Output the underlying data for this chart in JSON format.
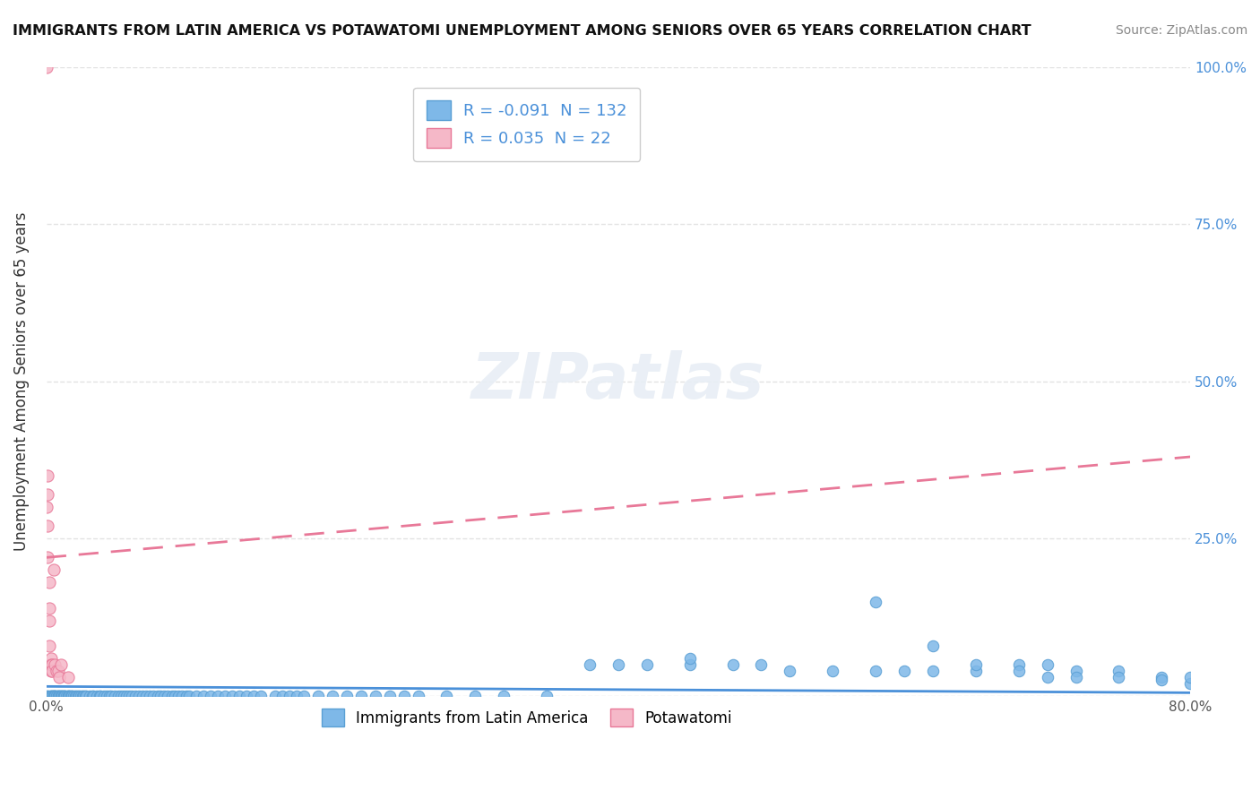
{
  "title": "IMMIGRANTS FROM LATIN AMERICA VS POTAWATOMI UNEMPLOYMENT AMONG SENIORS OVER 65 YEARS CORRELATION CHART",
  "source": "Source: ZipAtlas.com",
  "xlabel": "",
  "ylabel": "Unemployment Among Seniors over 65 years",
  "xlim": [
    0.0,
    0.8
  ],
  "ylim": [
    0.0,
    1.0
  ],
  "xticks": [
    0.0,
    0.1,
    0.2,
    0.3,
    0.4,
    0.5,
    0.6,
    0.7,
    0.8
  ],
  "xticklabels": [
    "0.0%",
    "",
    "",
    "",
    "",
    "",
    "",
    "",
    "80.0%"
  ],
  "yticks": [
    0.0,
    0.25,
    0.5,
    0.75,
    1.0
  ],
  "yticklabels_left": [
    "",
    "25.0%",
    "50.0%",
    "75.0%",
    "100.0%"
  ],
  "yticklabels_right": [
    "",
    "25.0%",
    "50.0%",
    "75.0%",
    "100.0%"
  ],
  "blue_color": "#7eb8e8",
  "blue_edge": "#5a9fd4",
  "pink_color": "#f5b8c8",
  "pink_edge": "#e87898",
  "blue_R": -0.091,
  "blue_N": 132,
  "pink_R": 0.035,
  "pink_N": 22,
  "trend_blue_color": "#4a90d9",
  "trend_pink_color": "#e87898",
  "watermark": "ZIPatlas",
  "background_color": "#ffffff",
  "grid_color": "#dddddd",
  "legend_label_blue": "Immigrants from Latin America",
  "legend_label_pink": "Potawatomi",
  "blue_scatter_x": [
    0.0,
    0.001,
    0.002,
    0.003,
    0.003,
    0.004,
    0.004,
    0.005,
    0.005,
    0.005,
    0.006,
    0.006,
    0.007,
    0.007,
    0.008,
    0.008,
    0.009,
    0.009,
    0.01,
    0.01,
    0.011,
    0.011,
    0.012,
    0.012,
    0.013,
    0.013,
    0.014,
    0.015,
    0.015,
    0.016,
    0.016,
    0.017,
    0.018,
    0.018,
    0.019,
    0.02,
    0.021,
    0.022,
    0.023,
    0.024,
    0.025,
    0.026,
    0.027,
    0.028,
    0.03,
    0.032,
    0.033,
    0.035,
    0.037,
    0.038,
    0.04,
    0.042,
    0.044,
    0.045,
    0.048,
    0.05,
    0.052,
    0.054,
    0.056,
    0.058,
    0.06,
    0.062,
    0.065,
    0.067,
    0.07,
    0.072,
    0.075,
    0.078,
    0.08,
    0.082,
    0.085,
    0.088,
    0.09,
    0.092,
    0.095,
    0.098,
    0.1,
    0.105,
    0.11,
    0.115,
    0.12,
    0.125,
    0.13,
    0.135,
    0.14,
    0.145,
    0.15,
    0.16,
    0.165,
    0.17,
    0.175,
    0.18,
    0.19,
    0.2,
    0.21,
    0.22,
    0.23,
    0.24,
    0.25,
    0.26,
    0.28,
    0.3,
    0.32,
    0.35,
    0.38,
    0.4,
    0.42,
    0.45,
    0.48,
    0.5,
    0.52,
    0.55,
    0.58,
    0.6,
    0.62,
    0.65,
    0.68,
    0.7,
    0.72,
    0.75,
    0.78,
    0.8,
    0.58,
    0.62,
    0.65,
    0.68,
    0.7,
    0.72,
    0.75,
    0.78,
    0.8,
    0.45
  ],
  "blue_scatter_y": [
    0.0,
    0.0,
    0.0,
    0.0,
    0.0,
    0.0,
    0.0,
    0.0,
    0.0,
    0.0,
    0.0,
    0.0,
    0.0,
    0.0,
    0.0,
    0.0,
    0.0,
    0.0,
    0.0,
    0.0,
    0.0,
    0.0,
    0.0,
    0.0,
    0.0,
    0.0,
    0.0,
    0.0,
    0.0,
    0.0,
    0.0,
    0.0,
    0.0,
    0.0,
    0.0,
    0.0,
    0.0,
    0.0,
    0.0,
    0.0,
    0.0,
    0.0,
    0.0,
    0.0,
    0.0,
    0.0,
    0.0,
    0.0,
    0.0,
    0.0,
    0.0,
    0.0,
    0.0,
    0.0,
    0.0,
    0.0,
    0.0,
    0.0,
    0.0,
    0.0,
    0.0,
    0.0,
    0.0,
    0.0,
    0.0,
    0.0,
    0.0,
    0.0,
    0.0,
    0.0,
    0.0,
    0.0,
    0.0,
    0.0,
    0.0,
    0.0,
    0.0,
    0.0,
    0.0,
    0.0,
    0.0,
    0.0,
    0.0,
    0.0,
    0.0,
    0.0,
    0.0,
    0.0,
    0.0,
    0.0,
    0.0,
    0.0,
    0.0,
    0.0,
    0.0,
    0.0,
    0.0,
    0.0,
    0.0,
    0.0,
    0.0,
    0.0,
    0.0,
    0.0,
    0.05,
    0.05,
    0.05,
    0.05,
    0.05,
    0.05,
    0.04,
    0.04,
    0.04,
    0.04,
    0.04,
    0.04,
    0.05,
    0.05,
    0.04,
    0.04,
    0.03,
    0.02,
    0.15,
    0.08,
    0.05,
    0.04,
    0.03,
    0.03,
    0.03,
    0.025,
    0.03,
    0.06
  ],
  "pink_scatter_x": [
    0.0,
    0.0,
    0.001,
    0.001,
    0.001,
    0.001,
    0.002,
    0.002,
    0.002,
    0.002,
    0.003,
    0.003,
    0.003,
    0.004,
    0.004,
    0.005,
    0.006,
    0.007,
    0.008,
    0.009,
    0.01,
    0.015
  ],
  "pink_scatter_y": [
    1.0,
    0.3,
    0.32,
    0.35,
    0.27,
    0.22,
    0.18,
    0.14,
    0.08,
    0.12,
    0.06,
    0.05,
    0.04,
    0.05,
    0.04,
    0.2,
    0.05,
    0.04,
    0.04,
    0.03,
    0.05,
    0.03
  ],
  "blue_trend_x": [
    0.0,
    0.8
  ],
  "blue_trend_y_start": 0.015,
  "blue_trend_y_end": 0.005,
  "pink_trend_x": [
    0.0,
    0.8
  ],
  "pink_trend_y_start": 0.22,
  "pink_trend_y_end": 0.38
}
